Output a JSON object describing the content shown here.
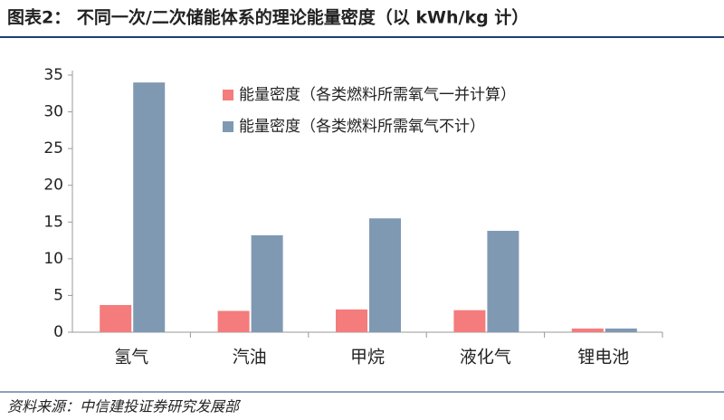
{
  "chart_data": {
    "type": "bar",
    "title": "图表2：  不同一次/二次储能体系的理论能量密度（以 kWh/kg 计）",
    "source": "资料来源：中信建投证券研究发展部",
    "categories": [
      "氢气",
      "汽油",
      "甲烷",
      "液化气",
      "锂电池"
    ],
    "series": [
      {
        "name": "能量密度（各类燃料所需氧气一并计算）",
        "color": "#f47c7c",
        "values": [
          3.7,
          2.9,
          3.1,
          3.0,
          0.5
        ]
      },
      {
        "name": "能量密度（各类燃料所需氧气不计）",
        "color": "#8099b3",
        "values": [
          34.0,
          13.2,
          15.5,
          13.8,
          0.5
        ]
      }
    ],
    "ylim": [
      0,
      35
    ],
    "yticks": [
      0,
      5,
      10,
      15,
      20,
      25,
      30,
      35
    ],
    "legend": "top-left"
  }
}
